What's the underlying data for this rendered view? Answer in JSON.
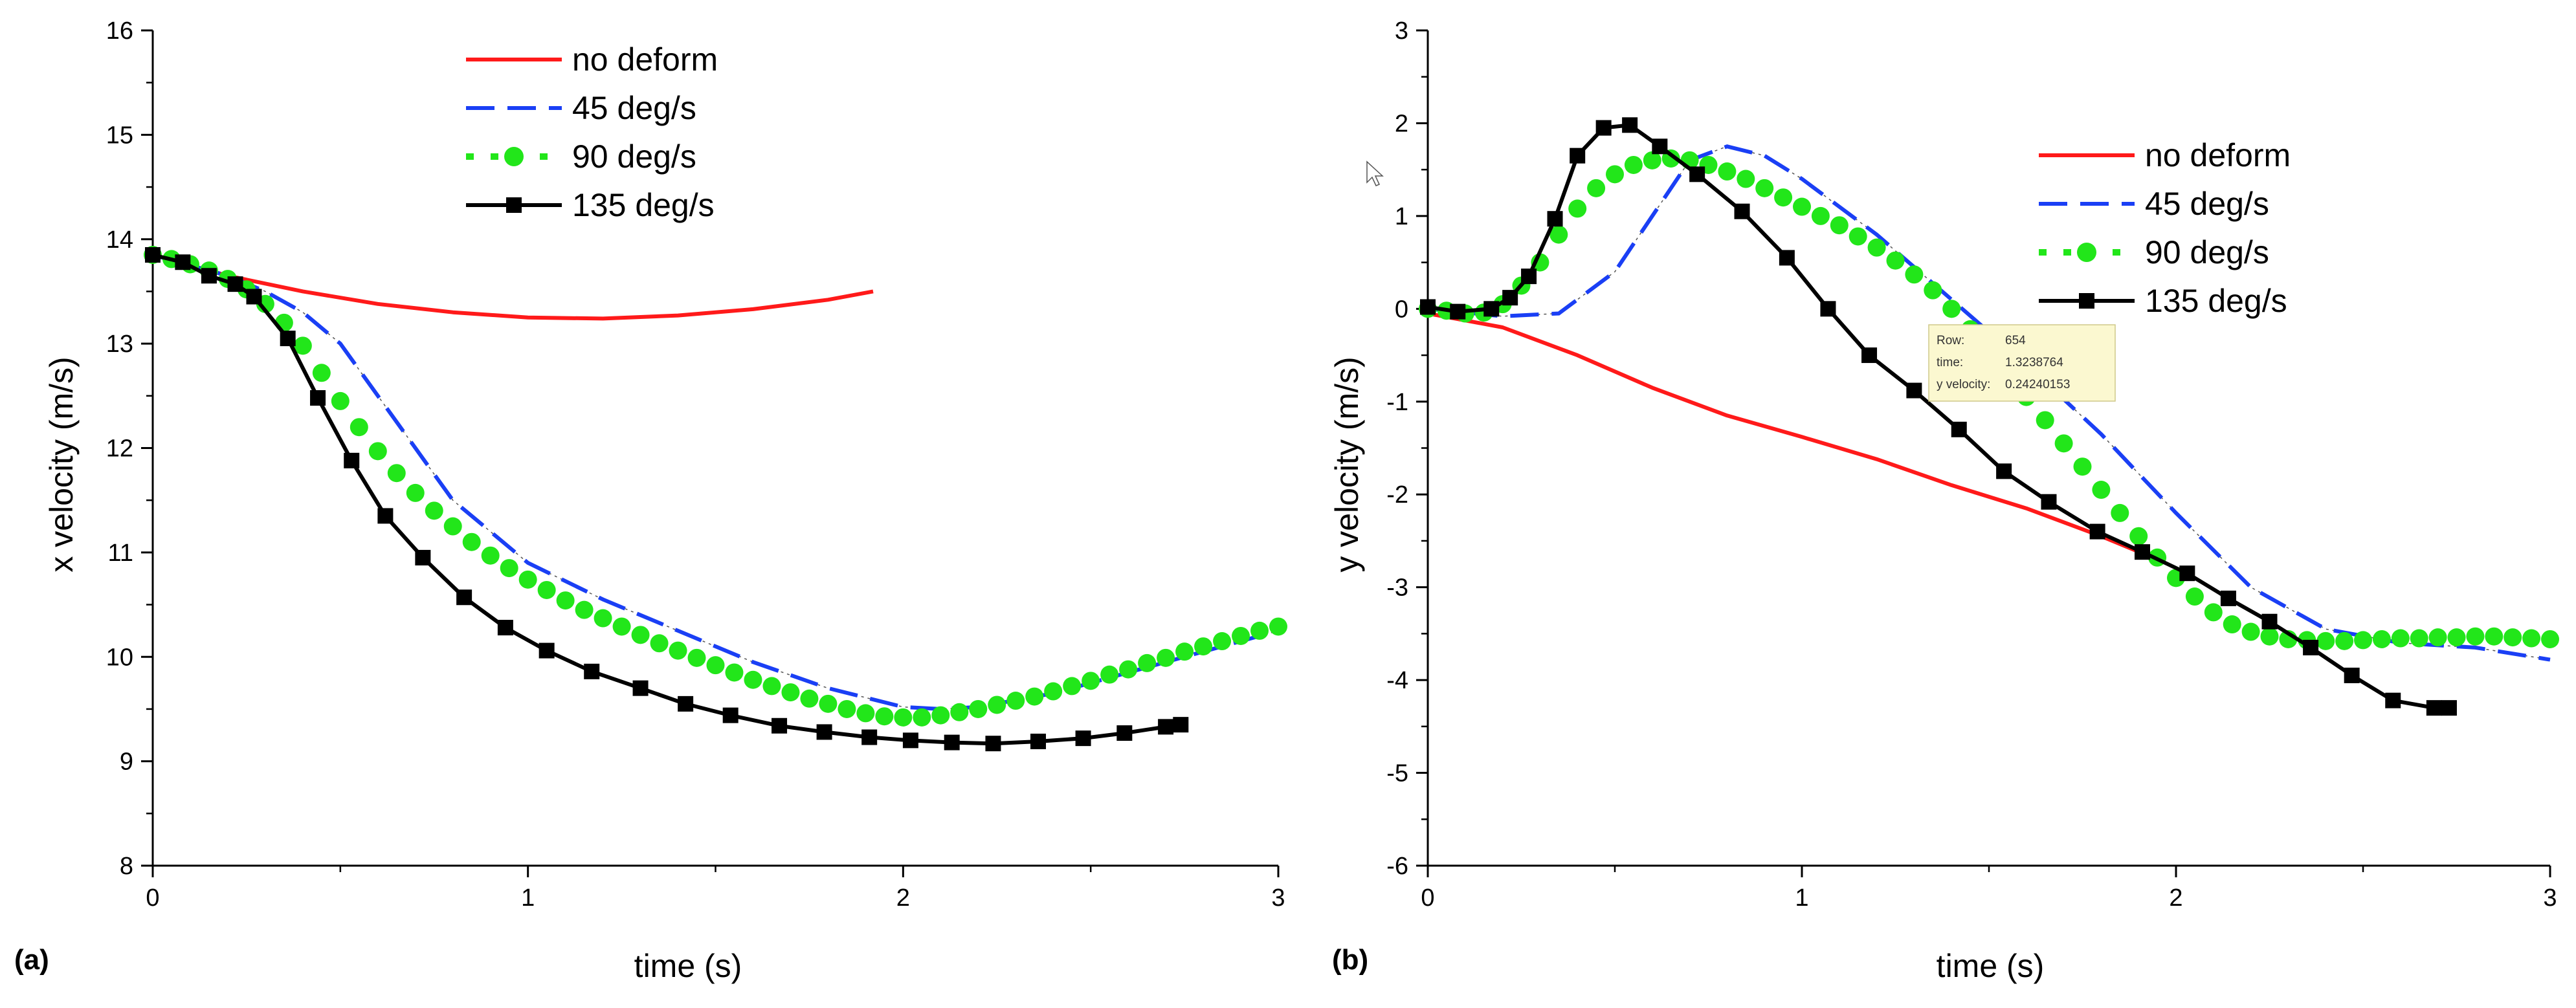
{
  "figure": {
    "panel_labels": [
      "(a)",
      "(b)"
    ],
    "tooltip": {
      "rows": [
        {
          "label": "Row:",
          "value": "654"
        },
        {
          "label": "time:",
          "value": "1.3238764"
        },
        {
          "label": "y velocity:",
          "value": "0.24240153"
        }
      ]
    }
  },
  "chart_data": [
    {
      "type": "line",
      "panel": "(a)",
      "title": "",
      "xlabel": "time (s)",
      "ylabel": "x velocity (m/s)",
      "xlim": [
        0,
        3
      ],
      "ylim": [
        8,
        16
      ],
      "xticks": [
        0,
        1,
        2,
        3
      ],
      "yticks": [
        8,
        9,
        10,
        11,
        12,
        13,
        14,
        15,
        16
      ],
      "legend_position": "top-center",
      "series": [
        {
          "name": "no deform",
          "color": "#ff1a1a",
          "style": "solid",
          "x": [
            0,
            0.2,
            0.4,
            0.6,
            0.8,
            1.0,
            1.2,
            1.4,
            1.6,
            1.8,
            1.92
          ],
          "y": [
            13.85,
            13.65,
            13.5,
            13.38,
            13.3,
            13.25,
            13.24,
            13.27,
            13.33,
            13.42,
            13.5
          ]
        },
        {
          "name": "45 deg/s",
          "color": "#1a3ff5",
          "style": "dashed",
          "x": [
            0,
            0.2,
            0.3,
            0.4,
            0.5,
            0.6,
            0.7,
            0.8,
            1.0,
            1.2,
            1.4,
            1.6,
            1.8,
            2.0,
            2.1,
            2.2,
            2.4,
            2.6,
            2.8,
            3.0
          ],
          "y": [
            13.85,
            13.65,
            13.5,
            13.3,
            13.0,
            12.5,
            12.0,
            11.5,
            10.9,
            10.55,
            10.25,
            9.95,
            9.7,
            9.52,
            9.5,
            9.52,
            9.65,
            9.85,
            10.05,
            10.25
          ]
        },
        {
          "name": "90 deg/s",
          "color": "#22e61a",
          "style": "dots",
          "x": [
            0,
            0.05,
            0.1,
            0.15,
            0.2,
            0.25,
            0.3,
            0.35,
            0.4,
            0.45,
            0.5,
            0.55,
            0.6,
            0.65,
            0.7,
            0.75,
            0.8,
            0.85,
            0.9,
            0.95,
            1.0,
            1.05,
            1.1,
            1.15,
            1.2,
            1.25,
            1.3,
            1.35,
            1.4,
            1.45,
            1.5,
            1.55,
            1.6,
            1.65,
            1.7,
            1.75,
            1.8,
            1.85,
            1.9,
            1.95,
            2.0,
            2.05,
            2.1,
            2.15,
            2.2,
            2.25,
            2.3,
            2.35,
            2.4,
            2.45,
            2.5,
            2.55,
            2.6,
            2.65,
            2.7,
            2.75,
            2.8,
            2.85,
            2.9,
            2.95,
            3.0
          ],
          "y": [
            13.85,
            13.81,
            13.76,
            13.7,
            13.62,
            13.52,
            13.38,
            13.2,
            12.98,
            12.72,
            12.45,
            12.2,
            11.97,
            11.76,
            11.57,
            11.4,
            11.25,
            11.1,
            10.97,
            10.85,
            10.74,
            10.64,
            10.54,
            10.45,
            10.37,
            10.29,
            10.21,
            10.13,
            10.06,
            9.99,
            9.92,
            9.85,
            9.78,
            9.72,
            9.66,
            9.6,
            9.55,
            9.5,
            9.46,
            9.43,
            9.42,
            9.42,
            9.44,
            9.47,
            9.5,
            9.54,
            9.58,
            9.62,
            9.67,
            9.72,
            9.77,
            9.83,
            9.88,
            9.94,
            9.99,
            10.05,
            10.1,
            10.15,
            10.2,
            10.25,
            10.29
          ]
        },
        {
          "name": "135 deg/s",
          "color": "#000000",
          "style": "square-markers",
          "x": [
            0,
            0.08,
            0.15,
            0.22,
            0.27,
            0.36,
            0.44,
            0.53,
            0.62,
            0.72,
            0.83,
            0.94,
            1.05,
            1.17,
            1.3,
            1.42,
            1.54,
            1.67,
            1.79,
            1.91,
            2.02,
            2.13,
            2.24,
            2.36,
            2.48,
            2.59,
            2.7,
            2.74
          ],
          "y": [
            13.85,
            13.78,
            13.65,
            13.57,
            13.45,
            13.05,
            12.48,
            11.88,
            11.35,
            10.95,
            10.57,
            10.28,
            10.06,
            9.86,
            9.7,
            9.55,
            9.44,
            9.34,
            9.28,
            9.23,
            9.2,
            9.18,
            9.17,
            9.19,
            9.22,
            9.27,
            9.33,
            9.35
          ]
        }
      ]
    },
    {
      "type": "line",
      "panel": "(b)",
      "title": "",
      "xlabel": "time (s)",
      "ylabel": "y velocity (m/s)",
      "xlim": [
        0,
        3
      ],
      "ylim": [
        -6,
        3
      ],
      "xticks": [
        0,
        1,
        2,
        3
      ],
      "yticks": [
        -6,
        -5,
        -4,
        -3,
        -2,
        -1,
        0,
        1,
        2,
        3
      ],
      "legend_position": "top-right",
      "series": [
        {
          "name": "no deform",
          "color": "#ff1a1a",
          "style": "solid",
          "x": [
            0,
            0.2,
            0.4,
            0.6,
            0.8,
            1.0,
            1.2,
            1.4,
            1.6,
            1.8,
            1.92
          ],
          "y": [
            -0.05,
            -0.2,
            -0.5,
            -0.85,
            -1.15,
            -1.38,
            -1.62,
            -1.9,
            -2.15,
            -2.45,
            -2.65
          ]
        },
        {
          "name": "45 deg/s",
          "color": "#1a3ff5",
          "style": "dashed",
          "x": [
            0,
            0.2,
            0.35,
            0.5,
            0.6,
            0.7,
            0.8,
            0.9,
            1.0,
            1.2,
            1.4,
            1.6,
            1.8,
            2.0,
            2.2,
            2.4,
            2.6,
            2.8,
            3.0
          ],
          "y": [
            0,
            -0.08,
            -0.05,
            0.4,
            1.0,
            1.6,
            1.75,
            1.65,
            1.4,
            0.8,
            0.1,
            -0.6,
            -1.35,
            -2.2,
            -3.0,
            -3.45,
            -3.6,
            -3.65,
            -3.78
          ]
        },
        {
          "name": "90 deg/s",
          "color": "#22e61a",
          "style": "dots",
          "x": [
            0,
            0.05,
            0.1,
            0.15,
            0.2,
            0.25,
            0.3,
            0.35,
            0.4,
            0.45,
            0.5,
            0.55,
            0.6,
            0.65,
            0.7,
            0.75,
            0.8,
            0.85,
            0.9,
            0.95,
            1.0,
            1.05,
            1.1,
            1.15,
            1.2,
            1.25,
            1.3,
            1.35,
            1.4,
            1.45,
            1.5,
            1.55,
            1.6,
            1.65,
            1.7,
            1.75,
            1.8,
            1.85,
            1.9,
            1.95,
            2.0,
            2.05,
            2.1,
            2.15,
            2.2,
            2.25,
            2.3,
            2.35,
            2.4,
            2.45,
            2.5,
            2.55,
            2.6,
            2.65,
            2.7,
            2.75,
            2.8,
            2.85,
            2.9,
            2.95,
            3.0
          ],
          "y": [
            0,
            -0.02,
            -0.05,
            -0.04,
            0.05,
            0.25,
            0.5,
            0.8,
            1.08,
            1.3,
            1.45,
            1.55,
            1.6,
            1.62,
            1.6,
            1.55,
            1.48,
            1.4,
            1.3,
            1.2,
            1.1,
            1.0,
            0.9,
            0.78,
            0.66,
            0.52,
            0.37,
            0.2,
            0.0,
            -0.22,
            -0.45,
            -0.7,
            -0.95,
            -1.2,
            -1.45,
            -1.7,
            -1.95,
            -2.2,
            -2.45,
            -2.68,
            -2.9,
            -3.1,
            -3.27,
            -3.4,
            -3.48,
            -3.53,
            -3.56,
            -3.57,
            -3.58,
            -3.58,
            -3.57,
            -3.56,
            -3.55,
            -3.55,
            -3.54,
            -3.54,
            -3.53,
            -3.53,
            -3.54,
            -3.55,
            -3.56
          ]
        },
        {
          "name": "135 deg/s",
          "color": "#000000",
          "style": "square-markers",
          "x": [
            0,
            0.08,
            0.17,
            0.22,
            0.27,
            0.34,
            0.4,
            0.47,
            0.54,
            0.62,
            0.72,
            0.84,
            0.96,
            1.07,
            1.18,
            1.3,
            1.42,
            1.54,
            1.66,
            1.79,
            1.91,
            2.03,
            2.14,
            2.25,
            2.36,
            2.47,
            2.58,
            2.69,
            2.73
          ],
          "y": [
            0.02,
            -0.03,
            0.0,
            0.12,
            0.35,
            0.97,
            1.65,
            1.95,
            1.98,
            1.75,
            1.45,
            1.05,
            0.55,
            0.0,
            -0.5,
            -0.88,
            -1.3,
            -1.75,
            -2.08,
            -2.4,
            -2.62,
            -2.85,
            -3.12,
            -3.37,
            -3.65,
            -3.95,
            -4.22,
            -4.3,
            -4.3
          ]
        }
      ]
    }
  ]
}
